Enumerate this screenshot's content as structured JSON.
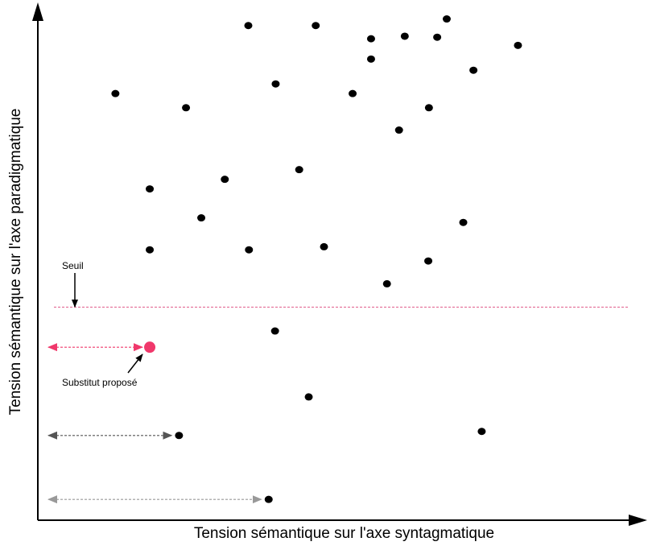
{
  "labels": {
    "x_axis": "Tension sémantique sur l'axe syntagmatique",
    "y_axis": "Tension sémantique sur l'axe paradigmatique",
    "threshold": "Seuil",
    "proposed": "Substitut proposé"
  },
  "colors": {
    "axis": "#000000",
    "point": "#000000",
    "threshold_line": "#e05a8a",
    "highlight": "#f0386b",
    "arrow_dark": "#555555",
    "arrow_light": "#999999"
  },
  "chart_data": {
    "type": "scatter",
    "title": "",
    "xlabel": "Tension sémantique sur l'axe syntagmatique",
    "ylabel": "Tension sémantique sur l'axe paradigmatique",
    "xlim": [
      0,
      100
    ],
    "ylim": [
      0,
      100
    ],
    "threshold_y": 42,
    "proposed_point": {
      "x": 17.6,
      "y": 34.1
    },
    "points": [
      {
        "x": 33.1,
        "y": 97.5
      },
      {
        "x": 43.7,
        "y": 97.5
      },
      {
        "x": 64.3,
        "y": 98.8
      },
      {
        "x": 57.7,
        "y": 95.4
      },
      {
        "x": 52.4,
        "y": 94.9
      },
      {
        "x": 62.8,
        "y": 95.2
      },
      {
        "x": 75.5,
        "y": 93.6
      },
      {
        "x": 52.4,
        "y": 90.9
      },
      {
        "x": 68.5,
        "y": 88.7
      },
      {
        "x": 12.2,
        "y": 84.1
      },
      {
        "x": 37.4,
        "y": 86.0
      },
      {
        "x": 49.5,
        "y": 84.1
      },
      {
        "x": 23.3,
        "y": 81.3
      },
      {
        "x": 61.5,
        "y": 81.3
      },
      {
        "x": 56.8,
        "y": 76.9
      },
      {
        "x": 17.6,
        "y": 65.3
      },
      {
        "x": 29.4,
        "y": 67.2
      },
      {
        "x": 41.1,
        "y": 69.1
      },
      {
        "x": 25.7,
        "y": 59.6
      },
      {
        "x": 66.9,
        "y": 58.7
      },
      {
        "x": 17.6,
        "y": 53.3
      },
      {
        "x": 33.2,
        "y": 53.3
      },
      {
        "x": 45.0,
        "y": 53.9
      },
      {
        "x": 61.4,
        "y": 51.1
      },
      {
        "x": 54.9,
        "y": 46.6
      },
      {
        "x": 37.3,
        "y": 37.3
      },
      {
        "x": 42.6,
        "y": 24.3
      },
      {
        "x": 22.2,
        "y": 16.7
      },
      {
        "x": 69.8,
        "y": 17.5
      },
      {
        "x": 36.3,
        "y": 4.1
      }
    ],
    "distance_arrows": [
      {
        "kind": "highlight",
        "x_to": 17.6,
        "y": 34.1
      },
      {
        "kind": "dark",
        "x_to": 22.2,
        "y": 16.7
      },
      {
        "kind": "light",
        "x_to": 36.3,
        "y": 4.1
      }
    ]
  }
}
